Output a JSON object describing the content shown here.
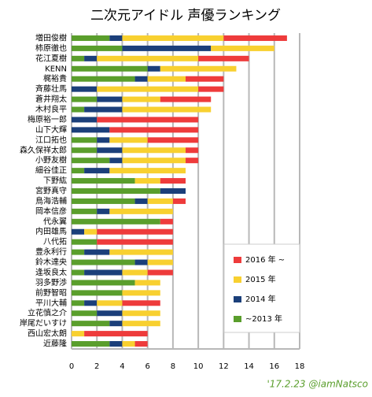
{
  "chart_data": {
    "type": "stacked_bar_horizontal",
    "title": "二次元アイドル 声優ランキング",
    "categories": [
      "増田俊樹",
      "柿原徹也",
      "花江夏樹",
      "KENN",
      "梶裕貴",
      "斉藤壮馬",
      "蒼井翔太",
      "木村良平",
      "梅原裕一郎",
      "山下大輝",
      "江口拓也",
      "森久保祥太郎",
      "小野友樹",
      "細谷佳正",
      "下野紘",
      "宮野真守",
      "鳥海浩輔",
      "岡本信彦",
      "代永翼",
      "内田雄馬",
      "八代拓",
      "豊永利行",
      "鈴木達央",
      "逢坂良太",
      "羽多野渉",
      "前野智昭",
      "平川大輔",
      "立花慎之介",
      "岸尾だいすけ",
      "西山宏太朗",
      "近藤隆"
    ],
    "series": [
      {
        "name": "~2013 年",
        "color": "#5a9e2c",
        "values": [
          3,
          4,
          1,
          6,
          5,
          0,
          2,
          1,
          0,
          0,
          2,
          2,
          3,
          1,
          5,
          7,
          5,
          2,
          7,
          0,
          2,
          1,
          5,
          1,
          5,
          4,
          1,
          2,
          3,
          0,
          3
        ]
      },
      {
        "name": "2014 年",
        "color": "#1b3f7a",
        "values": [
          1,
          7,
          1,
          1,
          1,
          2,
          2,
          3,
          2,
          3,
          1,
          2,
          1,
          2,
          0,
          2,
          1,
          1,
          0,
          1,
          0,
          2,
          1,
          3,
          0,
          0,
          1,
          2,
          1,
          0,
          1
        ]
      },
      {
        "name": "2015 年",
        "color": "#f8d030",
        "values": [
          8,
          5,
          8,
          6,
          3,
          8,
          3,
          7,
          0,
          0,
          3,
          5,
          5,
          6,
          2,
          0,
          2,
          5,
          0,
          1,
          0,
          5,
          2,
          2,
          2,
          3,
          2,
          3,
          3,
          1,
          1
        ]
      },
      {
        "name": "2016 年 ~",
        "color": "#ee3b3b",
        "values": [
          5,
          0,
          4,
          0,
          3,
          2,
          4,
          0,
          8,
          7,
          4,
          1,
          1,
          0,
          2,
          0,
          1,
          0,
          1,
          6,
          6,
          0,
          0,
          2,
          0,
          0,
          3,
          0,
          0,
          5,
          1
        ]
      }
    ],
    "xlim": [
      0,
      18
    ],
    "xticks": [
      0,
      2,
      4,
      6,
      8,
      10,
      12,
      14,
      16,
      18
    ],
    "grid": true,
    "legend": "right",
    "signature": "'17.2.23 @iamNatsco"
  }
}
